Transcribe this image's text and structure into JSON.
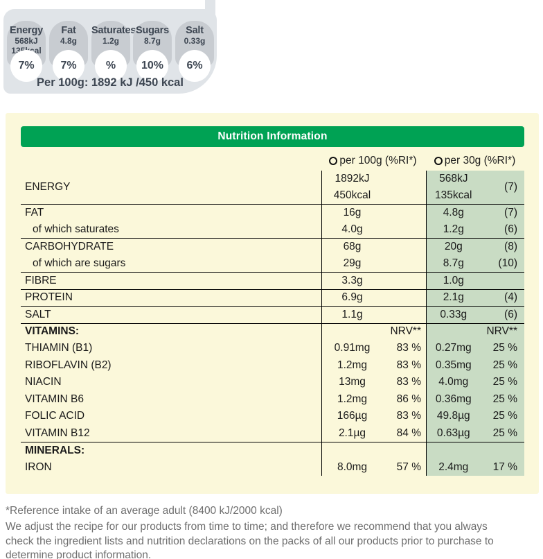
{
  "colors": {
    "green_header": "#00a254",
    "per30_column_bg": "#c9dcc4",
    "panel_bg": "#fbf8da",
    "banner_strip": "#e0e4e8",
    "badge_bg": "#c8ccd1",
    "badge_text": "#3d4652",
    "footnote_text": "#6e6e6e"
  },
  "ri_banner": {
    "caption": "Per 100g: 1892 kJ /450 kcal",
    "badges": [
      {
        "title": "Energy",
        "lines": [
          "568kJ",
          "135kcal"
        ],
        "pct": "7%"
      },
      {
        "title": "Fat",
        "lines": [
          "4.8g"
        ],
        "pct": "7%"
      },
      {
        "title": "Saturates",
        "lines": [
          "1.2g"
        ],
        "pct": "%"
      },
      {
        "title": "Sugars",
        "lines": [
          "8.7g"
        ],
        "pct": "10%"
      },
      {
        "title": "Salt",
        "lines": [
          "0.33g"
        ],
        "pct": "6%"
      }
    ]
  },
  "table": {
    "title": "Nutrition Information",
    "col1_header": "per 100g (%RI*)",
    "col2_header": "per 30g (%RI*)",
    "rows": [
      {
        "label": "ENERGY",
        "c1_amt": [
          "1892kJ",
          "450kcal"
        ],
        "c1_pct": "",
        "c2_amt": [
          "568kJ",
          "135kcal"
        ],
        "c2_pct": "(7)",
        "line": false,
        "tall": true
      },
      {
        "label": "FAT",
        "c1_amt": "16g",
        "c1_pct": "",
        "c2_amt": "4.8g",
        "c2_pct": "(7)",
        "line": true
      },
      {
        "label": "of which saturates",
        "indent": true,
        "c1_amt": "4.0g",
        "c1_pct": "",
        "c2_amt": "1.2g",
        "c2_pct": "(6)",
        "line": false
      },
      {
        "label": "CARBOHYDRATE",
        "c1_amt": "68g",
        "c1_pct": "",
        "c2_amt": "20g",
        "c2_pct": "(8)",
        "line": true
      },
      {
        "label": "of which are sugars",
        "indent": true,
        "c1_amt": "29g",
        "c1_pct": "",
        "c2_amt": "8.7g",
        "c2_pct": "(10)",
        "line": false
      },
      {
        "label": "FIBRE",
        "c1_amt": "3.3g",
        "c1_pct": "",
        "c2_amt": "1.0g",
        "c2_pct": "",
        "line": true
      },
      {
        "label": "PROTEIN",
        "c1_amt": "6.9g",
        "c1_pct": "",
        "c2_amt": "2.1g",
        "c2_pct": "(4)",
        "line": true
      },
      {
        "label": "SALT",
        "c1_amt": "1.1g",
        "c1_pct": "",
        "c2_amt": "0.33g",
        "c2_pct": "(6)",
        "line": true
      },
      {
        "label": "VITAMINS:",
        "bold": true,
        "c1_amt": "",
        "c1_pct": "NRV**",
        "c2_amt": "",
        "c2_pct": "NRV**",
        "line": true
      },
      {
        "label": "THIAMIN (B1)",
        "c1_amt": "0.91mg",
        "c1_pct": "83 %",
        "c2_amt": "0.27mg",
        "c2_pct": "25 %",
        "line": false
      },
      {
        "label": "RIBOFLAVIN (B2)",
        "c1_amt": "1.2mg",
        "c1_pct": "83 %",
        "c2_amt": "0.35mg",
        "c2_pct": "25 %",
        "line": false
      },
      {
        "label": "NIACIN",
        "c1_amt": "13mg",
        "c1_pct": "83 %",
        "c2_amt": "4.0mg",
        "c2_pct": "25 %",
        "line": false
      },
      {
        "label": "VITAMIN B6",
        "c1_amt": "1.2mg",
        "c1_pct": "86 %",
        "c2_amt": "0.36mg",
        "c2_pct": "25 %",
        "line": false
      },
      {
        "label": "FOLIC ACID",
        "c1_amt": "166µg",
        "c1_pct": "83 %",
        "c2_amt": "49.8µg",
        "c2_pct": "25 %",
        "line": false
      },
      {
        "label": "VITAMIN B12",
        "c1_amt": "2.1µg",
        "c1_pct": "84 %",
        "c2_amt": "0.63µg",
        "c2_pct": "25 %",
        "line": false
      },
      {
        "label": "MINERALS:",
        "bold": true,
        "c1_amt": "",
        "c1_pct": "",
        "c2_amt": "",
        "c2_pct": "",
        "line": true
      },
      {
        "label": "IRON",
        "c1_amt": "8.0mg",
        "c1_pct": "57 %",
        "c2_amt": "2.4mg",
        "c2_pct": "17 %",
        "line": false
      }
    ]
  },
  "footnotes": {
    "reference": "*Reference intake of an average adult (8400 kJ/2000 kcal)",
    "disclaimer": "We adjust the recipe for our products from time to time; and therefore we recommend that you always check the ingredient lists and nutrition declarations on the packs of all our products prior to purchase to determine product information."
  }
}
